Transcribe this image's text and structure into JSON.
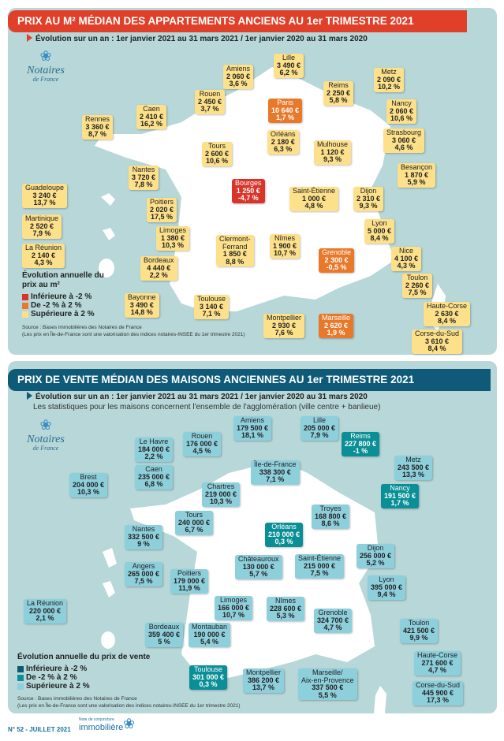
{
  "colors": {
    "panel": "#b7d7d8",
    "apt_header": "#e0402a",
    "house_header": "#0e5a78",
    "apt_low": "#d8352a",
    "apt_mid": "#e8792a",
    "apt_high": "#fde08a",
    "house_low": "#0a5a73",
    "house_mid": "#0a8f96",
    "house_high": "#8ecfdc"
  },
  "logo": {
    "brand": "Notaires",
    "sub": "de France"
  },
  "apartments": {
    "title": "PRIX AU M² MÉDIAN DES APPARTEMENTS ANCIENS AU 1er TRIMESTRE 2021",
    "period": "Évolution sur un an : 1er janvier 2021 au 31 mars 2021 / 1er janvier 2020 au 31 mars 2020",
    "legend": {
      "title": "Évolution annuelle du prix au m²",
      "items": [
        "Inférieure à -2 %",
        "De -2 % à 2 %",
        "Supérieure à 2 %"
      ]
    },
    "source": "Source : Bases immobilières des Notaires de France",
    "note": "(Les prix en Île-de-France sont une valorisation des indices notaires-INSEE du 1er trimestre 2021)",
    "cities": [
      {
        "name": "Lille",
        "price": "3 490 €",
        "change": "6,2 %",
        "level": "high"
      },
      {
        "name": "Amiens",
        "price": "2 060 €",
        "change": "3,6 %",
        "level": "high"
      },
      {
        "name": "Metz",
        "price": "2 090 €",
        "change": "10,2 %",
        "level": "high"
      },
      {
        "name": "Reims",
        "price": "2 250 €",
        "change": "5,8 %",
        "level": "high"
      },
      {
        "name": "Rouen",
        "price": "2 450 €",
        "change": "3,7 %",
        "level": "high"
      },
      {
        "name": "Paris",
        "price": "10 640 €",
        "change": "1,7 %",
        "level": "mid"
      },
      {
        "name": "Nancy",
        "price": "2 060 €",
        "change": "10,6 %",
        "level": "high"
      },
      {
        "name": "Caen",
        "price": "2 410 €",
        "change": "16,2 %",
        "level": "high"
      },
      {
        "name": "Rennes",
        "price": "3 360 €",
        "change": "8,7 %",
        "level": "high"
      },
      {
        "name": "Strasbourg",
        "price": "3 060 €",
        "change": "4,6 %",
        "level": "high"
      },
      {
        "name": "Orléans",
        "price": "2 180 €",
        "change": "6,3 %",
        "level": "high"
      },
      {
        "name": "Mulhouse",
        "price": "1 120 €",
        "change": "9,3 %",
        "level": "high"
      },
      {
        "name": "Tours",
        "price": "2 600 €",
        "change": "10,6 %",
        "level": "high"
      },
      {
        "name": "Besançon",
        "price": "1 870 €",
        "change": "5,9 %",
        "level": "high"
      },
      {
        "name": "Nantes",
        "price": "3 720 €",
        "change": "7,8 %",
        "level": "high"
      },
      {
        "name": "Bourges",
        "price": "1 250 €",
        "change": "-4,7 %",
        "level": "low"
      },
      {
        "name": "Saint-Étienne",
        "price": "1 000 €",
        "change": "4,8 %",
        "level": "high"
      },
      {
        "name": "Dijon",
        "price": "2 310 €",
        "change": "9,3 %",
        "level": "high"
      },
      {
        "name": "Guadeloupe",
        "price": "3 240 €",
        "change": "13,7 %",
        "level": "high"
      },
      {
        "name": "Poitiers",
        "price": "2 020 €",
        "change": "17,5 %",
        "level": "high"
      },
      {
        "name": "Martinique",
        "price": "2 520 €",
        "change": "7,9 %",
        "level": "high"
      },
      {
        "name": "Lyon",
        "price": "5 000 €",
        "change": "8,4 %",
        "level": "high"
      },
      {
        "name": "Limoges",
        "price": "1 380 €",
        "change": "10,3 %",
        "level": "high"
      },
      {
        "name": "Clermont-\nFerrand",
        "price": "1 850 €",
        "change": "8,8 %",
        "level": "high"
      },
      {
        "name": "Nîmes",
        "price": "1 900 €",
        "change": "10,7 %",
        "level": "high"
      },
      {
        "name": "Grenoble",
        "price": "2 300 €",
        "change": "-0,5 %",
        "level": "mid"
      },
      {
        "name": "La Réunion",
        "price": "2 140 €",
        "change": "4,3 %",
        "level": "high"
      },
      {
        "name": "Nice",
        "price": "4 100 €",
        "change": "4,3 %",
        "level": "high"
      },
      {
        "name": "Bordeaux",
        "price": "4 440 €",
        "change": "2,2 %",
        "level": "high"
      },
      {
        "name": "Toulon",
        "price": "2 260 €",
        "change": "7,5 %",
        "level": "high"
      },
      {
        "name": "Bayonne",
        "price": "3 490 €",
        "change": "14,8 %",
        "level": "high"
      },
      {
        "name": "Toulouse",
        "price": "3 140 €",
        "change": "7,1 %",
        "level": "high"
      },
      {
        "name": "Haute-Corse",
        "price": "2 630 €",
        "change": "8,4 %",
        "level": "high"
      },
      {
        "name": "Montpellier",
        "price": "2 930 €",
        "change": "7,6 %",
        "level": "high"
      },
      {
        "name": "Marseille",
        "price": "2 620 €",
        "change": "1,9 %",
        "level": "mid"
      },
      {
        "name": "Corse-du-Sud",
        "price": "3 610 €",
        "change": "8,4 %",
        "level": "high"
      }
    ]
  },
  "houses": {
    "title": "PRIX DE VENTE MÉDIAN DES MAISONS ANCIENNES AU 1er TRIMESTRE 2021",
    "period": "Évolution sur un an : 1er janvier 2021 au 31 mars 2021 / 1er janvier 2020 au 31 mars 2020",
    "scope": "Les statistiques pour les maisons concernent l'ensemble de l'agglomération (ville centre + banlieue)",
    "legend": {
      "title": "Évolution annuelle du prix de vente",
      "items": [
        "Inférieure à -2 %",
        "De -2 % à 2 %",
        "Supérieure à 2 %"
      ]
    },
    "source": "Source : Bases immobilières des Notaires de France",
    "note": "(Les prix en Île-de-France sont une valorisation des indices notaires-INSEE du 1er trimestre 2021)",
    "cities": [
      {
        "name": "Amiens",
        "price": "179 500 €",
        "change": "18,1 %",
        "level": "high"
      },
      {
        "name": "Lille",
        "price": "205 000 €",
        "change": "7,9 %",
        "level": "high"
      },
      {
        "name": "Rouen",
        "price": "176 000 €",
        "change": "4,5 %",
        "level": "high"
      },
      {
        "name": "Reims",
        "price": "227 800 €",
        "change": "-1 %",
        "level": "mid"
      },
      {
        "name": "Le Havre",
        "price": "184 000 €",
        "change": "2,2 %",
        "level": "high"
      },
      {
        "name": "Metz",
        "price": "243 500 €",
        "change": "13,3 %",
        "level": "high"
      },
      {
        "name": "Caen",
        "price": "235 000 €",
        "change": "6,8 %",
        "level": "high"
      },
      {
        "name": "Île-de-France",
        "price": "338 300 €",
        "change": "7,1 %",
        "level": "high"
      },
      {
        "name": "Brest",
        "price": "204 000 €",
        "change": "10,3 %",
        "level": "high"
      },
      {
        "name": "Chartres",
        "price": "219 000 €",
        "change": "10,3 %",
        "level": "high"
      },
      {
        "name": "Nancy",
        "price": "191 500 €",
        "change": "1,7 %",
        "level": "mid"
      },
      {
        "name": "Tours",
        "price": "240 000 €",
        "change": "6,7 %",
        "level": "high"
      },
      {
        "name": "Troyes",
        "price": "168 800 €",
        "change": "8,6 %",
        "level": "high"
      },
      {
        "name": "Orléans",
        "price": "210 000 €",
        "change": "0,3 %",
        "level": "mid"
      },
      {
        "name": "Nantes",
        "price": "332 500 €",
        "change": "9 %",
        "level": "high"
      },
      {
        "name": "Dijon",
        "price": "256 000 €",
        "change": "5,2 %",
        "level": "high"
      },
      {
        "name": "Angers",
        "price": "265 000 €",
        "change": "7,5 %",
        "level": "high"
      },
      {
        "name": "Châteauroux",
        "price": "130 000 €",
        "change": "5,7 %",
        "level": "high"
      },
      {
        "name": "Saint-Étienne",
        "price": "215 000 €",
        "change": "7,5 %",
        "level": "high"
      },
      {
        "name": "Poitiers",
        "price": "179 000 €",
        "change": "11,9 %",
        "level": "high"
      },
      {
        "name": "Lyon",
        "price": "395 000 €",
        "change": "9,4 %",
        "level": "high"
      },
      {
        "name": "Limoges",
        "price": "166 000 €",
        "change": "10,7 %",
        "level": "high"
      },
      {
        "name": "Nîmes",
        "price": "228 600 €",
        "change": "5,3 %",
        "level": "high"
      },
      {
        "name": "La Réunion",
        "price": "220 000 €",
        "change": "2,1 %",
        "level": "high"
      },
      {
        "name": "Grenoble",
        "price": "324 700 €",
        "change": "4,7 %",
        "level": "high"
      },
      {
        "name": "Bordeaux",
        "price": "359 400 €",
        "change": "5 %",
        "level": "high"
      },
      {
        "name": "Montauban",
        "price": "190 000 €",
        "change": "5,4 %",
        "level": "high"
      },
      {
        "name": "Toulon",
        "price": "421 500 €",
        "change": "9,9 %",
        "level": "high"
      },
      {
        "name": "Haute-Corse",
        "price": "271 600 €",
        "change": "4,7 %",
        "level": "high"
      },
      {
        "name": "Toulouse",
        "price": "301 000 €",
        "change": "0,3 %",
        "level": "mid"
      },
      {
        "name": "Montpellier",
        "price": "386 200 €",
        "change": "13,7 %",
        "level": "high"
      },
      {
        "name": "Marseille/\nAix-en-Provence",
        "price": "337 500 €",
        "change": "5,5 %",
        "level": "high"
      },
      {
        "name": "Corse-du-Sud",
        "price": "445 900 €",
        "change": "17,3 %",
        "level": "high"
      }
    ]
  },
  "footer": {
    "issue": "N° 52 - JUILLET 2021",
    "publication_small": "Note de conjoncture",
    "publication": "immobilière"
  }
}
